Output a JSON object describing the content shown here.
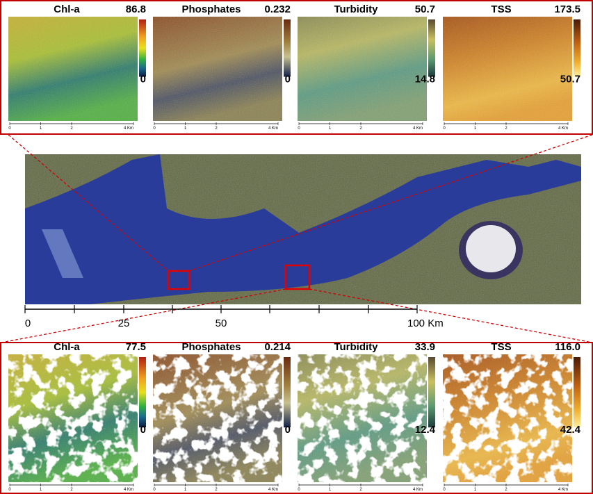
{
  "top_panels": [
    {
      "title": "Chl-a",
      "max": "86.8",
      "min": "0",
      "scale": [
        "0",
        "1",
        "2",
        "4 Km"
      ]
    },
    {
      "title": "Phosphates",
      "max": "0.232",
      "min": "0",
      "scale": [
        "0",
        "1",
        "2",
        "4 Km"
      ]
    },
    {
      "title": "Turbidity",
      "max": "50.7",
      "min": "14.8",
      "scale": [
        "0",
        "1",
        "2",
        "4 Km"
      ]
    },
    {
      "title": "TSS",
      "max": "173.5",
      "min": "50.7",
      "scale": [
        "0",
        "1",
        "2",
        "4 Km"
      ]
    }
  ],
  "main_map": {
    "scale_labels": [
      "0",
      "25",
      "50",
      "100 Km"
    ]
  },
  "bottom_panels": [
    {
      "title": "Chl-a",
      "max": "77.5",
      "min": "0",
      "scale": [
        "0",
        "1",
        "2",
        "4 Km"
      ]
    },
    {
      "title": "Phosphates",
      "max": "0.214",
      "min": "0",
      "scale": [
        "0",
        "1",
        "2",
        "4 Km"
      ]
    },
    {
      "title": "Turbidity",
      "max": "33.9",
      "min": "12.4",
      "scale": [
        "0",
        "1",
        "2",
        "4 Km"
      ]
    },
    {
      "title": "TSS",
      "max": "116.0",
      "min": "42.4",
      "scale": [
        "0",
        "1",
        "2",
        "4 Km"
      ]
    }
  ]
}
